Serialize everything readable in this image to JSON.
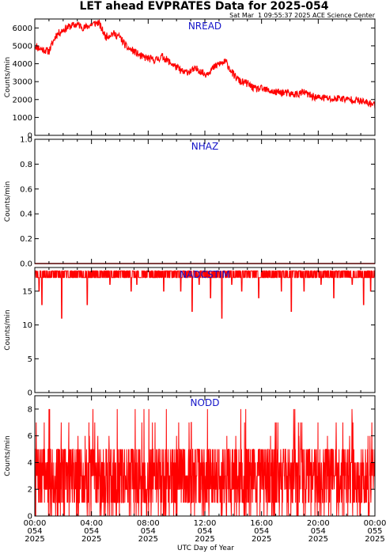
{
  "header": {
    "title": "LET ahead EVPRATES Data for 2025-054",
    "timestamp": "Sat Mar  1 09:55:37 2025 ACE Science Center"
  },
  "x_axis_label": "UTC Day of Year",
  "colors": {
    "series": "#ff0000",
    "panel_title": "#1414c8",
    "axes": "#000000"
  },
  "chart_data": [
    {
      "type": "line",
      "panel_title": "NREAD",
      "ylabel": "Counts/min",
      "ylim": [
        0,
        6500
      ],
      "yticks": [
        0,
        1000,
        2000,
        3000,
        4000,
        5000,
        6000
      ],
      "xlim": [
        0,
        24
      ],
      "x_unit": "hours UTC",
      "x": [
        0,
        0.5,
        1,
        1.5,
        2,
        2.5,
        3,
        3.5,
        4,
        4.5,
        5,
        5.5,
        6,
        6.5,
        7,
        7.5,
        8,
        8.5,
        9,
        9.5,
        10,
        10.5,
        11,
        11.5,
        12,
        12.5,
        13,
        13.5,
        14,
        14.5,
        15,
        15.5,
        16,
        16.5,
        17,
        17.5,
        18,
        18.5,
        19,
        19.5,
        20,
        20.5,
        21,
        21.5,
        22,
        22.5,
        23,
        23.5,
        24
      ],
      "values": [
        5000,
        4800,
        4700,
        5600,
        5900,
        6100,
        6200,
        6000,
        6200,
        6300,
        5500,
        5700,
        5500,
        4900,
        4700,
        4400,
        4300,
        4200,
        4400,
        4100,
        3800,
        3500,
        3600,
        3700,
        3400,
        3700,
        4000,
        4100,
        3400,
        3000,
        2900,
        2600,
        2600,
        2500,
        2400,
        2400,
        2300,
        2300,
        2400,
        2200,
        2100,
        2100,
        2000,
        2100,
        2000,
        2000,
        1900,
        1800,
        1700
      ]
    },
    {
      "type": "line",
      "panel_title": "NHAZ",
      "ylabel": "Counts/min",
      "ylim": [
        0,
        1
      ],
      "yticks": [
        0.0,
        0.2,
        0.4,
        0.6,
        0.8,
        1.0
      ],
      "xlim": [
        0,
        24
      ],
      "x": [
        0,
        24
      ],
      "values": [
        0,
        0
      ]
    },
    {
      "type": "line",
      "panel_title": "NADCSTIM",
      "ylabel": "Counts/min",
      "ylim": [
        0,
        18.5
      ],
      "yticks": [
        0,
        5,
        10,
        15
      ],
      "xlim": [
        0,
        24
      ],
      "baseline": 18,
      "dips": [
        {
          "x": 0.3,
          "y": 15
        },
        {
          "x": 0.5,
          "y": 13
        },
        {
          "x": 1.1,
          "y": 17
        },
        {
          "x": 1.9,
          "y": 11
        },
        {
          "x": 3.7,
          "y": 13
        },
        {
          "x": 4.5,
          "y": 17
        },
        {
          "x": 5.3,
          "y": 16
        },
        {
          "x": 6.8,
          "y": 15
        },
        {
          "x": 7.2,
          "y": 16
        },
        {
          "x": 8.4,
          "y": 17
        },
        {
          "x": 9.1,
          "y": 15
        },
        {
          "x": 10.3,
          "y": 15
        },
        {
          "x": 11.1,
          "y": 12
        },
        {
          "x": 11.6,
          "y": 16
        },
        {
          "x": 12.4,
          "y": 14
        },
        {
          "x": 13.2,
          "y": 11
        },
        {
          "x": 13.9,
          "y": 16
        },
        {
          "x": 14.6,
          "y": 15
        },
        {
          "x": 15.8,
          "y": 14
        },
        {
          "x": 16.9,
          "y": 17
        },
        {
          "x": 17.4,
          "y": 15
        },
        {
          "x": 18.1,
          "y": 12
        },
        {
          "x": 19.0,
          "y": 15
        },
        {
          "x": 20.2,
          "y": 16
        },
        {
          "x": 21.1,
          "y": 14
        },
        {
          "x": 22.4,
          "y": 16
        },
        {
          "x": 23.2,
          "y": 13
        },
        {
          "x": 23.7,
          "y": 15
        }
      ]
    },
    {
      "type": "line",
      "panel_title": "NODD",
      "ylabel": "Counts/min",
      "ylim": [
        0,
        9
      ],
      "yticks": [
        0,
        2,
        4,
        6,
        8
      ],
      "xlim": [
        0,
        24
      ],
      "typical_range": [
        1,
        5
      ],
      "mean": 2.8,
      "max": 9
    }
  ],
  "x_ticks": [
    {
      "time": "00:00",
      "doy": "054",
      "year": "2025"
    },
    {
      "time": "04:00",
      "doy": "054",
      "year": "2025"
    },
    {
      "time": "08:00",
      "doy": "054",
      "year": "2025"
    },
    {
      "time": "12:00",
      "doy": "054",
      "year": "2025"
    },
    {
      "time": "16:00",
      "doy": "054",
      "year": "2025"
    },
    {
      "time": "20:00",
      "doy": "054",
      "year": "2025"
    },
    {
      "time": "00:00",
      "doy": "055",
      "year": "2025"
    }
  ]
}
